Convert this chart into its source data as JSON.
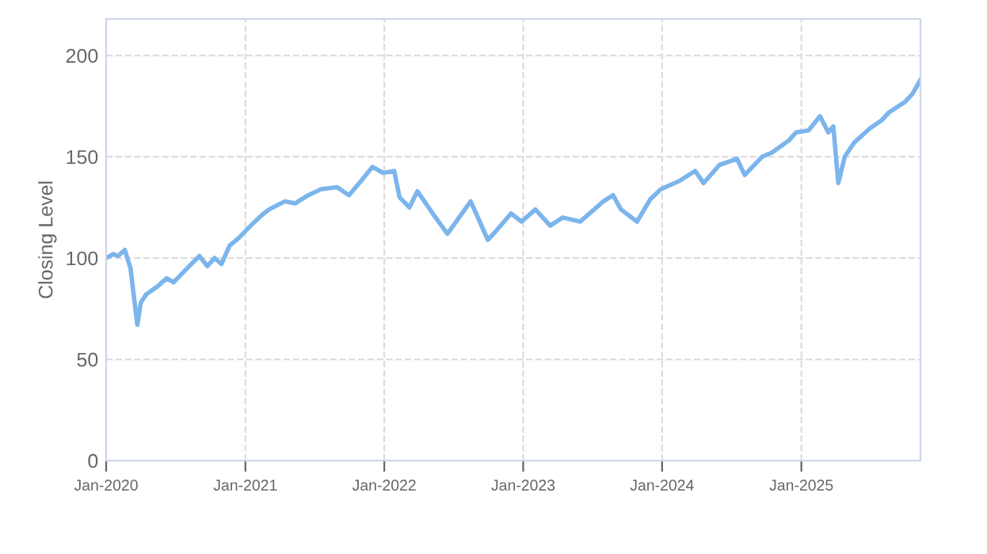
{
  "chart_data": {
    "type": "line",
    "ylabel": "Closing Level",
    "xlim": [
      "2020-01-01",
      "2025-11-10"
    ],
    "ylim": [
      0,
      218
    ],
    "yticks": [
      0,
      50,
      100,
      150,
      200
    ],
    "xticks": [
      {
        "value": "2020-01-01",
        "label": "Jan-2020"
      },
      {
        "value": "2021-01-01",
        "label": "Jan-2021"
      },
      {
        "value": "2022-01-01",
        "label": "Jan-2022"
      },
      {
        "value": "2023-01-01",
        "label": "Jan-2023"
      },
      {
        "value": "2024-01-01",
        "label": "Jan-2024"
      },
      {
        "value": "2025-01-01",
        "label": "Jan-2025"
      }
    ],
    "grid": true,
    "marker": "none",
    "line_style": "solid",
    "series": [
      {
        "color": "#7cb5ec",
        "x": [
          "2020-01-01",
          "2020-01-20",
          "2020-02-01",
          "2020-02-19",
          "2020-03-05",
          "2020-03-23",
          "2020-04-01",
          "2020-04-15",
          "2020-05-15",
          "2020-06-08",
          "2020-06-26",
          "2020-08-01",
          "2020-09-02",
          "2020-09-23",
          "2020-10-12",
          "2020-10-30",
          "2020-11-20",
          "2020-12-15",
          "2021-01-15",
          "2021-02-12",
          "2021-03-04",
          "2021-04-15",
          "2021-05-12",
          "2021-06-15",
          "2021-07-19",
          "2021-08-30",
          "2021-09-30",
          "2021-11-05",
          "2021-12-01",
          "2021-12-29",
          "2022-01-27",
          "2022-02-10",
          "2022-03-08",
          "2022-03-29",
          "2022-05-12",
          "2022-06-16",
          "2022-08-16",
          "2022-09-30",
          "2022-10-20",
          "2022-11-30",
          "2022-12-28",
          "2023-02-02",
          "2023-03-13",
          "2023-04-15",
          "2023-05-31",
          "2023-07-31",
          "2023-08-25",
          "2023-09-15",
          "2023-10-27",
          "2023-12-01",
          "2023-12-29",
          "2024-02-15",
          "2024-03-28",
          "2024-04-19",
          "2024-05-31",
          "2024-07-16",
          "2024-08-05",
          "2024-09-20",
          "2024-10-15",
          "2024-11-29",
          "2024-12-18",
          "2025-01-20",
          "2025-02-19",
          "2025-03-13",
          "2025-03-26",
          "2025-04-08",
          "2025-04-25",
          "2025-05-20",
          "2025-06-30",
          "2025-07-31",
          "2025-08-20",
          "2025-09-30",
          "2025-10-20",
          "2025-11-10"
        ],
        "values": [
          100,
          102,
          101,
          104,
          95,
          67,
          78,
          82,
          86,
          90,
          88,
          95,
          101,
          96,
          100,
          97,
          106,
          110,
          116,
          121,
          124,
          128,
          127,
          131,
          134,
          135,
          131,
          139,
          145,
          142,
          143,
          130,
          125,
          133,
          121,
          112,
          128,
          109,
          113,
          122,
          118,
          124,
          116,
          120,
          118,
          128,
          131,
          124,
          118,
          129,
          134,
          138,
          143,
          137,
          146,
          149,
          141,
          150,
          152,
          158,
          162,
          163,
          170,
          162,
          165,
          137,
          150,
          157,
          164,
          168,
          172,
          177,
          181,
          188
        ]
      }
    ]
  }
}
